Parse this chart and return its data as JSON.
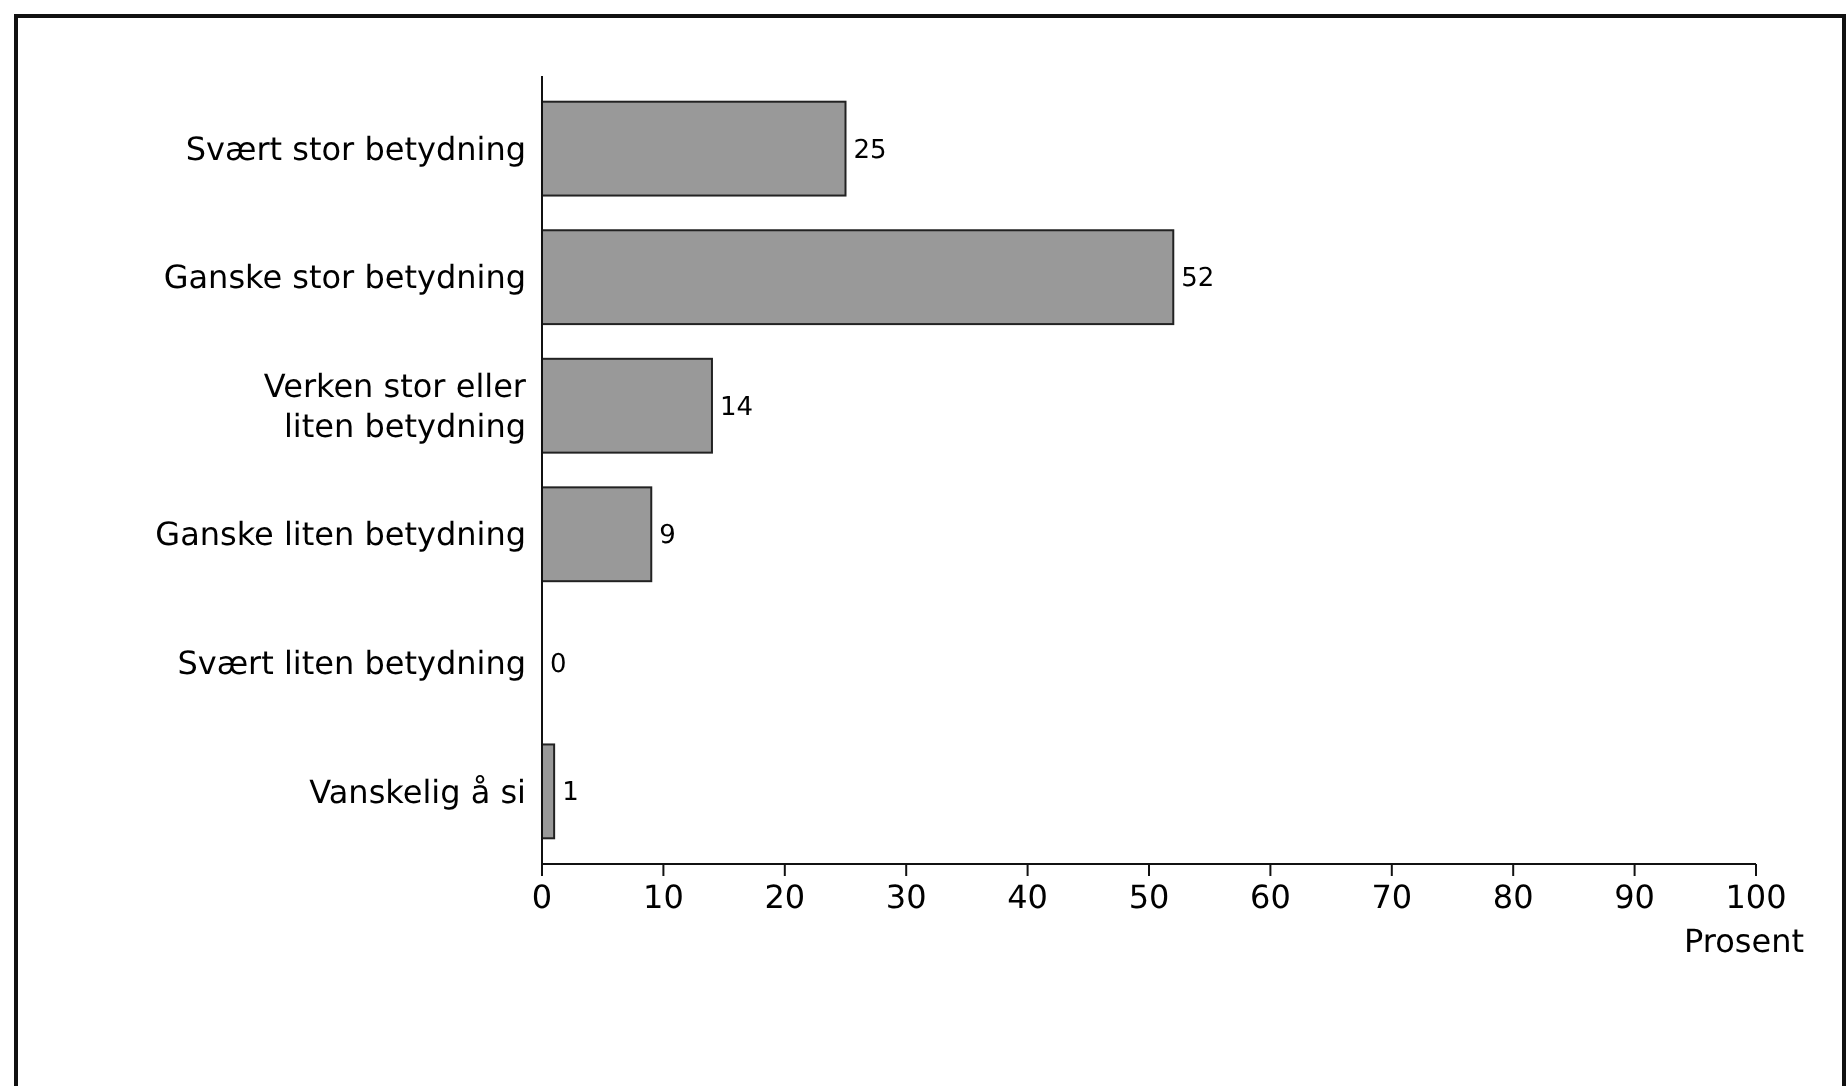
{
  "chart_data": {
    "type": "bar",
    "orientation": "horizontal",
    "xlabel": "Prosent",
    "categories": [
      "Svært stor betydning",
      "Ganske stor betydning",
      "Verken stor eller\nliten betydning",
      "Ganske liten betydning",
      "Svært liten betydning",
      "Vanskelig å si"
    ],
    "values": [
      25,
      52,
      14,
      9,
      0,
      1
    ],
    "color": "#999999",
    "data_labels": true,
    "xlim": [
      0,
      100
    ],
    "xticks": [
      0,
      10,
      20,
      30,
      40,
      50,
      60,
      70,
      80,
      90,
      100
    ],
    "grid": false
  }
}
